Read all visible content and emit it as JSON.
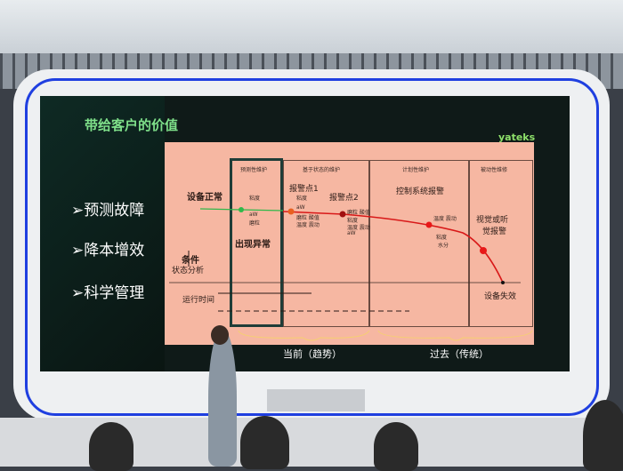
{
  "slide": {
    "title": "带给客户的价值",
    "logo": "yateks",
    "bullets": [
      "➢预测故障",
      "➢降本增效",
      "➢科学管理"
    ],
    "columns": [
      "预测性维护",
      "基于状态的维护",
      "计划性维护",
      "被动性维修"
    ],
    "labels": {
      "normal": "设备正常",
      "condition": "条件",
      "state_analysis": "状态分析",
      "runtime": "运行时间",
      "anomaly": "出现异常",
      "alarm1": "报警点1",
      "alarm2": "报警点2",
      "control_alarm": "控制系统报警",
      "visual_alarm_1": "视觉或听",
      "visual_alarm_2": "觉报警",
      "failure": "设备失效",
      "p1": [
        "粘度",
        "aW",
        "磨粒"
      ],
      "a1": [
        "粘度",
        "aW",
        "磨粒 酸值",
        "温度 震动"
      ],
      "a2": [
        "磨粒 酸值",
        "粘度",
        "温度 震动",
        "aW"
      ],
      "c": [
        "温度 震动",
        "粘度",
        "水分"
      ]
    },
    "bottom": {
      "current": "当前（趋势）",
      "past": "过去（传统）"
    }
  },
  "colors": {
    "led": "#1f3fe0",
    "title": "#7fe08a",
    "chart_bg": "#f6b7a2",
    "curve": "#d81818",
    "green_line": "#2fb84a"
  }
}
